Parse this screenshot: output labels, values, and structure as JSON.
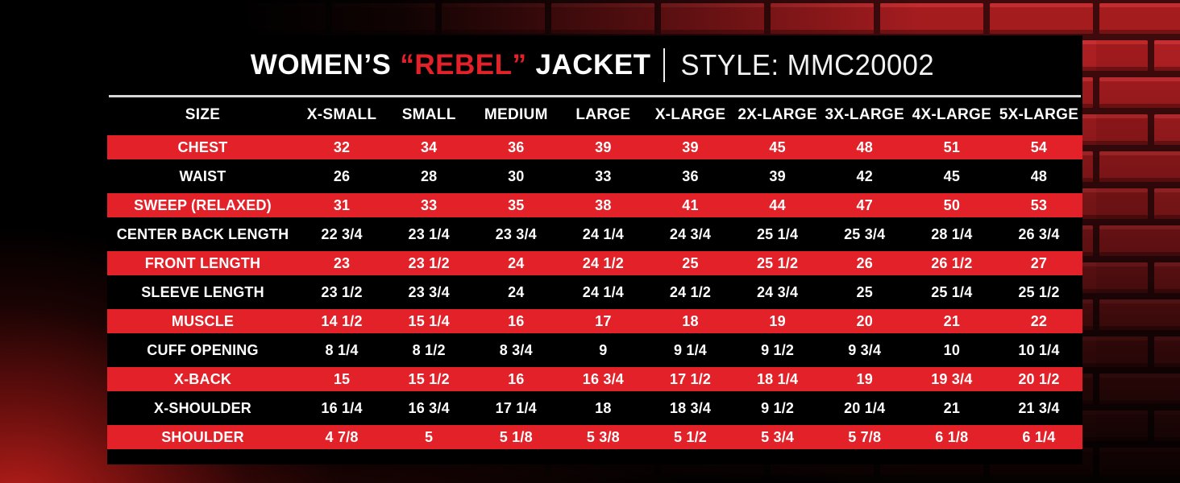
{
  "title": {
    "brand_prefix": "WOMEN’S",
    "quoted": "“REBEL”",
    "suffix": "JACKET",
    "style": "STYLE: MMC20002"
  },
  "colors": {
    "accent_red": "#e32128",
    "panel_black": "#000000",
    "text_white": "#ffffff",
    "brick_red": "#a51c1f",
    "divider_gray": "#d6d6d6"
  },
  "chart_data": {
    "type": "table",
    "title": "WOMEN’S “REBEL” JACKET | STYLE: MMC20002",
    "columns": [
      "SIZE",
      "X-SMALL",
      "SMALL",
      "MEDIUM",
      "LARGE",
      "X-LARGE",
      "2X-LARGE",
      "3X-LARGE",
      "4X-LARGE",
      "5X-LARGE"
    ],
    "rows": [
      {
        "label": "CHEST",
        "values": [
          "32",
          "34",
          "36",
          "39",
          "39",
          "45",
          "48",
          "51",
          "54"
        ]
      },
      {
        "label": "WAIST",
        "values": [
          "26",
          "28",
          "30",
          "33",
          "36",
          "39",
          "42",
          "45",
          "48"
        ]
      },
      {
        "label": "SWEEP (RELAXED)",
        "values": [
          "31",
          "33",
          "35",
          "38",
          "41",
          "44",
          "47",
          "50",
          "53"
        ]
      },
      {
        "label": "CENTER BACK LENGTH",
        "values": [
          "22 3/4",
          "23 1/4",
          "23 3/4",
          "24 1/4",
          "24 3/4",
          "25 1/4",
          "25 3/4",
          "28 1/4",
          "26 3/4"
        ]
      },
      {
        "label": "FRONT LENGTH",
        "values": [
          "23",
          "23 1/2",
          "24",
          "24 1/2",
          "25",
          "25 1/2",
          "26",
          "26 1/2",
          "27"
        ]
      },
      {
        "label": "SLEEVE LENGTH",
        "values": [
          "23 1/2",
          "23 3/4",
          "24",
          "24 1/4",
          "24 1/2",
          "24 3/4",
          "25",
          "25 1/4",
          "25 1/2"
        ]
      },
      {
        "label": "MUSCLE",
        "values": [
          "14 1/2",
          "15 1/4",
          "16",
          "17",
          "18",
          "19",
          "20",
          "21",
          "22"
        ]
      },
      {
        "label": "CUFF OPENING",
        "values": [
          "8 1/4",
          "8 1/2",
          "8 3/4",
          "9",
          "9 1/4",
          "9 1/2",
          "9 3/4",
          "10",
          "10 1/4"
        ]
      },
      {
        "label": "X-BACK",
        "values": [
          "15",
          "15 1/2",
          "16",
          "16 3/4",
          "17 1/2",
          "18 1/4",
          "19",
          "19 3/4",
          "20 1/2"
        ]
      },
      {
        "label": "X-SHOULDER",
        "values": [
          "16 1/4",
          "16 3/4",
          "17 1/4",
          "18",
          "18 3/4",
          "9 1/2",
          "20 1/4",
          "21",
          "21 3/4"
        ]
      },
      {
        "label": "SHOULDER",
        "values": [
          "4 7/8",
          "5",
          "5 1/8",
          "5 3/8",
          "5 1/2",
          "5 3/4",
          "5 7/8",
          "6 1/8",
          "6 1/4"
        ]
      }
    ]
  }
}
